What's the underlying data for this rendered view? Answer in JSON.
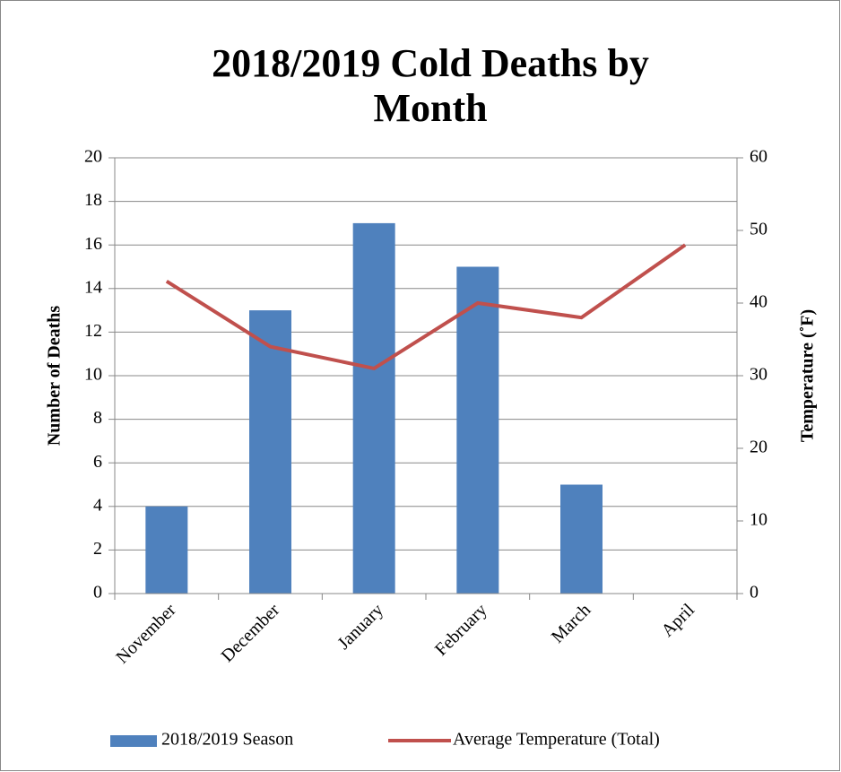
{
  "chart_data": {
    "type": "bar",
    "title": [
      "2018/2019 Cold Deaths by",
      "Month"
    ],
    "categories": [
      "November",
      "December",
      "January",
      "February",
      "March",
      "April"
    ],
    "series": [
      {
        "name": "2018/2019 Season",
        "type": "bar",
        "color": "#4f81bd",
        "values": [
          4,
          13,
          17,
          15,
          5,
          0
        ]
      },
      {
        "name": "Average Temperature (Total)",
        "type": "line",
        "axis": "y2",
        "color": "#c0504d",
        "values": [
          43,
          34,
          31,
          40,
          38,
          48
        ]
      }
    ],
    "y_label": "Number of Deaths",
    "y2_label": "Temperature (˚F)",
    "ylim": [
      0,
      20
    ],
    "yticks": [
      0,
      2,
      4,
      6,
      8,
      10,
      12,
      14,
      16,
      18,
      20
    ],
    "y2lim": [
      0,
      60
    ],
    "y2ticks": [
      0,
      10,
      20,
      30,
      40,
      50,
      60
    ],
    "grid": true,
    "legend": "bottom"
  }
}
